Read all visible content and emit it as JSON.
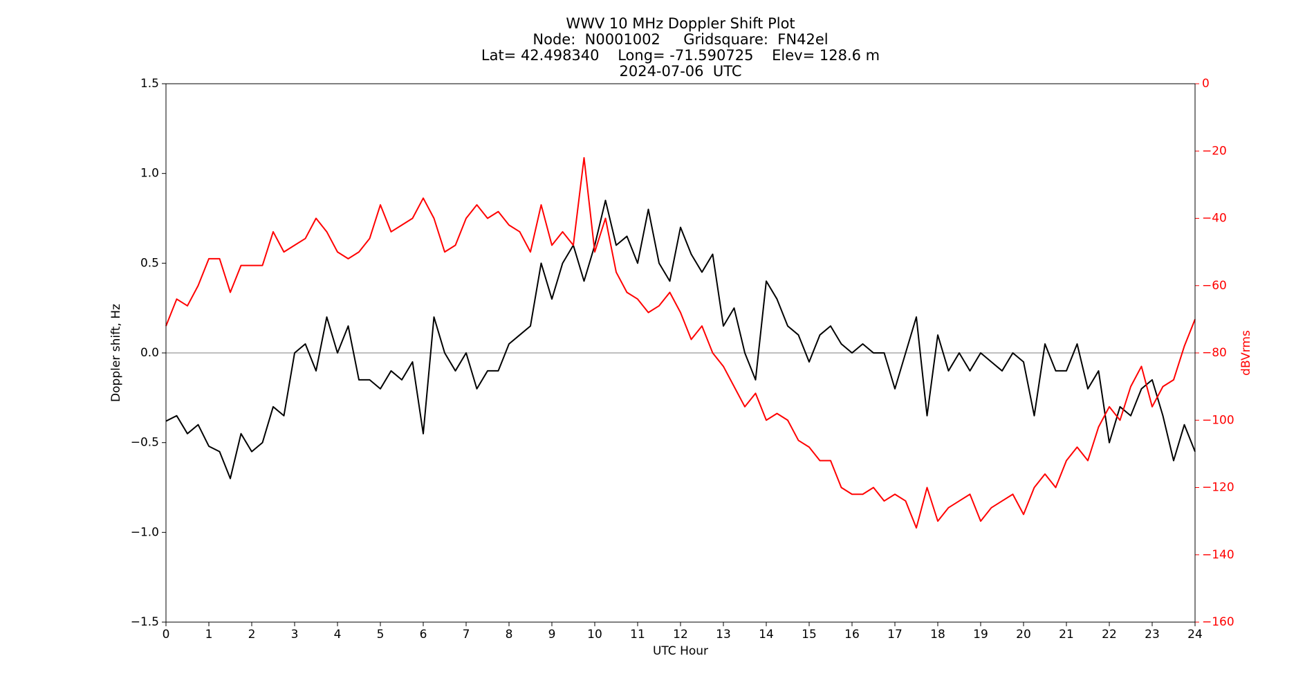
{
  "chart_data": {
    "type": "line",
    "title": [
      "WWV 10 MHz Doppler Shift Plot",
      "Node:  N0001002     Gridsquare:  FN42el",
      "Lat= 42.498340    Long= -71.590725    Elev= 128.6 m",
      "2024-07-06  UTC"
    ],
    "xlabel": "UTC Hour",
    "ylabel": "Doppler shift, Hz",
    "y2label": "dBVrms",
    "x": [
      0,
      0.25,
      0.5,
      0.75,
      1,
      1.25,
      1.5,
      1.75,
      2,
      2.25,
      2.5,
      2.75,
      3,
      3.25,
      3.5,
      3.75,
      4,
      4.25,
      4.5,
      4.75,
      5,
      5.25,
      5.5,
      5.75,
      6,
      6.25,
      6.5,
      6.75,
      7,
      7.25,
      7.5,
      7.75,
      8,
      8.25,
      8.5,
      8.75,
      9,
      9.25,
      9.5,
      9.75,
      10,
      10.25,
      10.5,
      10.75,
      11,
      11.25,
      11.5,
      11.75,
      12,
      12.25,
      12.5,
      12.75,
      13,
      13.25,
      13.5,
      13.75,
      14,
      14.25,
      14.5,
      14.75,
      15,
      15.25,
      15.5,
      15.75,
      16,
      16.25,
      16.5,
      16.75,
      17,
      17.25,
      17.5,
      17.75,
      18,
      18.25,
      18.5,
      18.75,
      19,
      19.25,
      19.5,
      19.75,
      20,
      20.25,
      20.5,
      20.75,
      21,
      21.25,
      21.5,
      21.75,
      22,
      22.25,
      22.5,
      22.75,
      23,
      23.25,
      23.5,
      23.75,
      24
    ],
    "series": [
      {
        "color": "#000000",
        "values": [
          -0.38,
          -0.35,
          -0.45,
          -0.4,
          -0.52,
          -0.55,
          -0.7,
          -0.45,
          -0.55,
          -0.5,
          -0.3,
          -0.35,
          0.0,
          0.05,
          -0.1,
          0.2,
          0.0,
          0.15,
          -0.15,
          -0.15,
          -0.2,
          -0.1,
          -0.15,
          -0.05,
          -0.45,
          0.2,
          0.0,
          -0.1,
          0.0,
          -0.2,
          -0.1,
          -0.1,
          0.05,
          0.1,
          0.15,
          0.5,
          0.3,
          0.5,
          0.6,
          0.4,
          0.6,
          0.85,
          0.6,
          0.65,
          0.5,
          0.8,
          0.5,
          0.4,
          0.7,
          0.55,
          0.45,
          0.55,
          0.15,
          0.25,
          0.0,
          -0.15,
          0.4,
          0.3,
          0.15,
          0.1,
          -0.05,
          0.1,
          0.15,
          0.05,
          0.0,
          0.05,
          0.0,
          0.0,
          -0.2,
          0.0,
          0.2,
          -0.35,
          0.1,
          -0.1,
          0.0,
          -0.1,
          0.0,
          -0.05,
          -0.1,
          0.0,
          -0.05,
          -0.35,
          0.05,
          -0.1,
          -0.1,
          0.05,
          -0.2,
          -0.1,
          -0.5,
          -0.3,
          -0.35,
          -0.2,
          -0.15,
          -0.35,
          -0.6,
          -0.4,
          -0.55
        ]
      },
      {
        "color": "#ff0000",
        "axis": "y2",
        "values": [
          -72,
          -64,
          -66,
          -60,
          -52,
          -52,
          -62,
          -54,
          -54,
          -54,
          -44,
          -50,
          -48,
          -46,
          -40,
          -44,
          -50,
          -52,
          -50,
          -46,
          -36,
          -44,
          -42,
          -40,
          -34,
          -40,
          -50,
          -48,
          -40,
          -36,
          -40,
          -38,
          -42,
          -44,
          -50,
          -36,
          -48,
          -44,
          -48,
          -22,
          -50,
          -40,
          -56,
          -62,
          -64,
          -68,
          -66,
          -62,
          -68,
          -76,
          -72,
          -80,
          -84,
          -90,
          -96,
          -92,
          -100,
          -98,
          -100,
          -106,
          -108,
          -112,
          -112,
          -120,
          -122,
          -122,
          -120,
          -124,
          -122,
          -124,
          -132,
          -120,
          -130,
          -126,
          -124,
          -122,
          -130,
          -126,
          -124,
          -122,
          -128,
          -120,
          -116,
          -120,
          -112,
          -108,
          -112,
          -102,
          -96,
          -100,
          -90,
          -84,
          -96,
          -90,
          -88,
          -78,
          -70
        ]
      }
    ],
    "xlim": [
      0,
      24
    ],
    "xticks": [
      0,
      1,
      2,
      3,
      4,
      5,
      6,
      7,
      8,
      9,
      10,
      11,
      12,
      13,
      14,
      15,
      16,
      17,
      18,
      19,
      20,
      21,
      22,
      23,
      24
    ],
    "ylim": [
      -1.5,
      1.5
    ],
    "yticks": [
      {
        "value": -1.5,
        "label": "−1.5"
      },
      {
        "value": -1,
        "label": "−1.0"
      },
      {
        "value": -0.5,
        "label": "−0.5"
      },
      {
        "value": 0,
        "label": "0.0"
      },
      0.5,
      {
        "value": 1,
        "label": "1.0"
      },
      1.5
    ],
    "y2lim": [
      -160,
      0
    ],
    "y2ticks": [
      {
        "value": -160,
        "label": "−160"
      },
      {
        "value": -140,
        "label": "−140"
      },
      {
        "value": -120,
        "label": "−120"
      },
      {
        "value": -100,
        "label": "−100"
      },
      {
        "value": -80,
        "label": "−80"
      },
      {
        "value": -60,
        "label": "−60"
      },
      {
        "value": -40,
        "label": "−40"
      },
      {
        "value": -20,
        "label": "−20"
      },
      0
    ],
    "y2color": "#ff0000",
    "hlines": [
      0
    ],
    "hline_color": "#999999"
  }
}
